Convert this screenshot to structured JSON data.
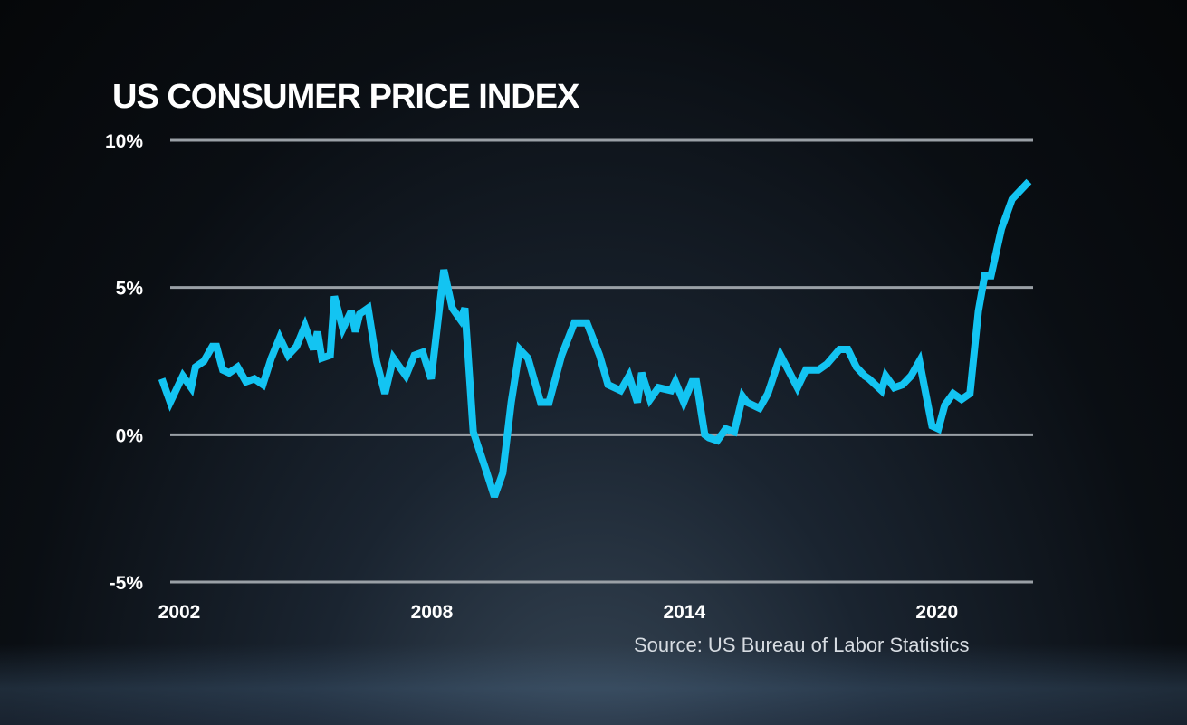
{
  "chart_data": {
    "type": "line",
    "title": "US CONSUMER PRICE INDEX",
    "source": "Source: US Bureau of Labor Statistics",
    "ylim": [
      -5,
      10
    ],
    "yticks": [
      {
        "value": 10,
        "label": "10%"
      },
      {
        "value": 5,
        "label": "5%"
      },
      {
        "value": 0,
        "label": "0%"
      },
      {
        "value": -5,
        "label": "-5%"
      }
    ],
    "xlim": [
      2002,
      2022.5
    ],
    "xticks": [
      {
        "value": 2002,
        "label": "2002"
      },
      {
        "value": 2008,
        "label": "2008"
      },
      {
        "value": 2014,
        "label": "2014"
      },
      {
        "value": 2020,
        "label": "2020"
      }
    ],
    "grid": true,
    "line_color": "#13c4f2",
    "series": [
      {
        "x": [
          2001.8,
          2002.0,
          2002.3,
          2002.5,
          2002.6,
          2002.8,
          2003.0,
          2003.1,
          2003.25,
          2003.4,
          2003.6,
          2003.8,
          2004.0,
          2004.2,
          2004.4,
          2004.6,
          2004.8,
          2005.0,
          2005.2,
          2005.4,
          2005.5,
          2005.6,
          2005.8,
          2005.9,
          2006.1,
          2006.3,
          2006.4,
          2006.5,
          2006.7,
          2006.9,
          2007.1,
          2007.3,
          2007.6,
          2007.8,
          2008.0,
          2008.2,
          2008.5,
          2008.7,
          2008.9,
          2009.0,
          2009.2,
          2009.5,
          2009.7,
          2009.9,
          2010.1,
          2010.3,
          2010.5,
          2010.8,
          2011.0,
          2011.3,
          2011.6,
          2011.9,
          2012.2,
          2012.4,
          2012.7,
          2012.9,
          2013.1,
          2013.2,
          2013.4,
          2013.6,
          2013.9,
          2014.0,
          2014.2,
          2014.4,
          2014.5,
          2014.7,
          2014.8,
          2015.0,
          2015.2,
          2015.4,
          2015.6,
          2015.7,
          2016.0,
          2016.2,
          2016.5,
          2016.9,
          2017.1,
          2017.4,
          2017.6,
          2017.9,
          2018.1,
          2018.3,
          2018.5,
          2018.6,
          2018.9,
          2019.0,
          2019.2,
          2019.4,
          2019.6,
          2019.8,
          2020.1,
          2020.25,
          2020.4,
          2020.6,
          2020.8,
          2021.0,
          2021.2,
          2021.35,
          2021.5,
          2021.75,
          2022.0,
          2022.4
        ],
        "y": [
          1.9,
          1.1,
          2.0,
          1.6,
          2.3,
          2.5,
          3.0,
          3.0,
          2.2,
          2.1,
          2.3,
          1.8,
          1.9,
          1.7,
          2.6,
          3.3,
          2.7,
          3.0,
          3.7,
          2.9,
          3.5,
          2.6,
          2.7,
          4.7,
          3.6,
          4.2,
          3.5,
          4.1,
          4.3,
          2.5,
          1.4,
          2.6,
          2.0,
          2.7,
          2.8,
          1.9,
          5.6,
          4.3,
          3.9,
          4.3,
          0.1,
          -1.2,
          -2.1,
          -1.3,
          1.1,
          2.9,
          2.6,
          1.1,
          1.1,
          2.7,
          3.8,
          3.8,
          2.7,
          1.7,
          1.5,
          2.0,
          1.1,
          2.1,
          1.2,
          1.6,
          1.5,
          1.8,
          1.1,
          1.8,
          1.8,
          0.0,
          -0.1,
          -0.2,
          0.2,
          0.1,
          1.3,
          1.1,
          0.9,
          1.4,
          2.7,
          1.6,
          2.2,
          2.2,
          2.4,
          2.9,
          2.9,
          2.3,
          2.0,
          1.9,
          1.5,
          2.0,
          1.6,
          1.7,
          2.0,
          2.5,
          0.3,
          0.2,
          1.0,
          1.4,
          1.2,
          1.4,
          4.2,
          5.4,
          5.4,
          7.0,
          8.0,
          8.6
        ]
      }
    ]
  }
}
